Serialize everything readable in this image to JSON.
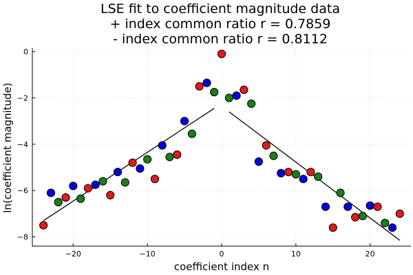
{
  "chart_data": {
    "type": "scatter",
    "title": [
      "LSE fit to coefficient magnitude data",
      "+ index common ratio r = 0.7859",
      "- index common ratio r = 0.8112"
    ],
    "xlabel": "coefficient index n",
    "ylabel": "ln(coefficient magnitude)",
    "xlim": [
      -25.5,
      25.5
    ],
    "ylim": [
      -8.4,
      0.15
    ],
    "xticks": [
      -20,
      -10,
      0,
      10,
      20
    ],
    "yticks": [
      0,
      -2,
      -4,
      -6,
      -8
    ],
    "grid": true,
    "legend": "none",
    "colors": {
      "red": "#e31a1c",
      "green": "#1a7f1a",
      "blue": "#0000dd"
    },
    "points": [
      {
        "x": -24,
        "y": -7.5,
        "color": "red"
      },
      {
        "x": -23,
        "y": -6.1,
        "color": "blue"
      },
      {
        "x": -22,
        "y": -6.5,
        "color": "green"
      },
      {
        "x": -21,
        "y": -6.3,
        "color": "red"
      },
      {
        "x": -20,
        "y": -5.8,
        "color": "blue"
      },
      {
        "x": -19,
        "y": -6.35,
        "color": "green"
      },
      {
        "x": -18,
        "y": -5.9,
        "color": "red"
      },
      {
        "x": -17,
        "y": -5.75,
        "color": "blue"
      },
      {
        "x": -16,
        "y": -5.6,
        "color": "green"
      },
      {
        "x": -15,
        "y": -6.2,
        "color": "red"
      },
      {
        "x": -14,
        "y": -5.2,
        "color": "blue"
      },
      {
        "x": -13,
        "y": -5.65,
        "color": "green"
      },
      {
        "x": -12,
        "y": -4.8,
        "color": "red"
      },
      {
        "x": -11,
        "y": -5.05,
        "color": "blue"
      },
      {
        "x": -10,
        "y": -4.65,
        "color": "green"
      },
      {
        "x": -9,
        "y": -5.5,
        "color": "red"
      },
      {
        "x": -8,
        "y": -4.05,
        "color": "blue"
      },
      {
        "x": -7,
        "y": -4.55,
        "color": "green"
      },
      {
        "x": -6,
        "y": -4.45,
        "color": "red"
      },
      {
        "x": -5,
        "y": -3.0,
        "color": "blue"
      },
      {
        "x": -4,
        "y": -3.55,
        "color": "green"
      },
      {
        "x": -3,
        "y": -1.5,
        "color": "red"
      },
      {
        "x": -2,
        "y": -1.35,
        "color": "blue"
      },
      {
        "x": -1,
        "y": -1.75,
        "color": "green"
      },
      {
        "x": 0,
        "y": -0.1,
        "color": "red"
      },
      {
        "x": 1,
        "y": -2.0,
        "color": "green"
      },
      {
        "x": 2,
        "y": -1.9,
        "color": "blue"
      },
      {
        "x": 3,
        "y": -1.65,
        "color": "red"
      },
      {
        "x": 4,
        "y": -2.25,
        "color": "green"
      },
      {
        "x": 5,
        "y": -4.75,
        "color": "blue"
      },
      {
        "x": 6,
        "y": -4.05,
        "color": "red"
      },
      {
        "x": 7,
        "y": -4.5,
        "color": "green"
      },
      {
        "x": 8,
        "y": -5.25,
        "color": "blue"
      },
      {
        "x": 9,
        "y": -5.2,
        "color": "red"
      },
      {
        "x": 10,
        "y": -5.3,
        "color": "green"
      },
      {
        "x": 11,
        "y": -5.5,
        "color": "blue"
      },
      {
        "x": 12,
        "y": -5.2,
        "color": "red"
      },
      {
        "x": 13,
        "y": -5.4,
        "color": "green"
      },
      {
        "x": 14,
        "y": -6.7,
        "color": "blue"
      },
      {
        "x": 15,
        "y": -7.6,
        "color": "red"
      },
      {
        "x": 16,
        "y": -6.1,
        "color": "green"
      },
      {
        "x": 17,
        "y": -6.7,
        "color": "blue"
      },
      {
        "x": 18,
        "y": -7.15,
        "color": "red"
      },
      {
        "x": 19,
        "y": -7.1,
        "color": "green"
      },
      {
        "x": 20,
        "y": -6.65,
        "color": "blue"
      },
      {
        "x": 21,
        "y": -6.7,
        "color": "red"
      },
      {
        "x": 22,
        "y": -7.4,
        "color": "green"
      },
      {
        "x": 23,
        "y": -7.6,
        "color": "blue"
      },
      {
        "x": 24,
        "y": -7.0,
        "color": "red"
      }
    ],
    "fit_lines": [
      {
        "x": [
          -24,
          -1
        ],
        "y": [
          -7.3,
          -2.45
        ]
      },
      {
        "x": [
          1,
          24
        ],
        "y": [
          -2.6,
          -8.15
        ]
      }
    ]
  }
}
